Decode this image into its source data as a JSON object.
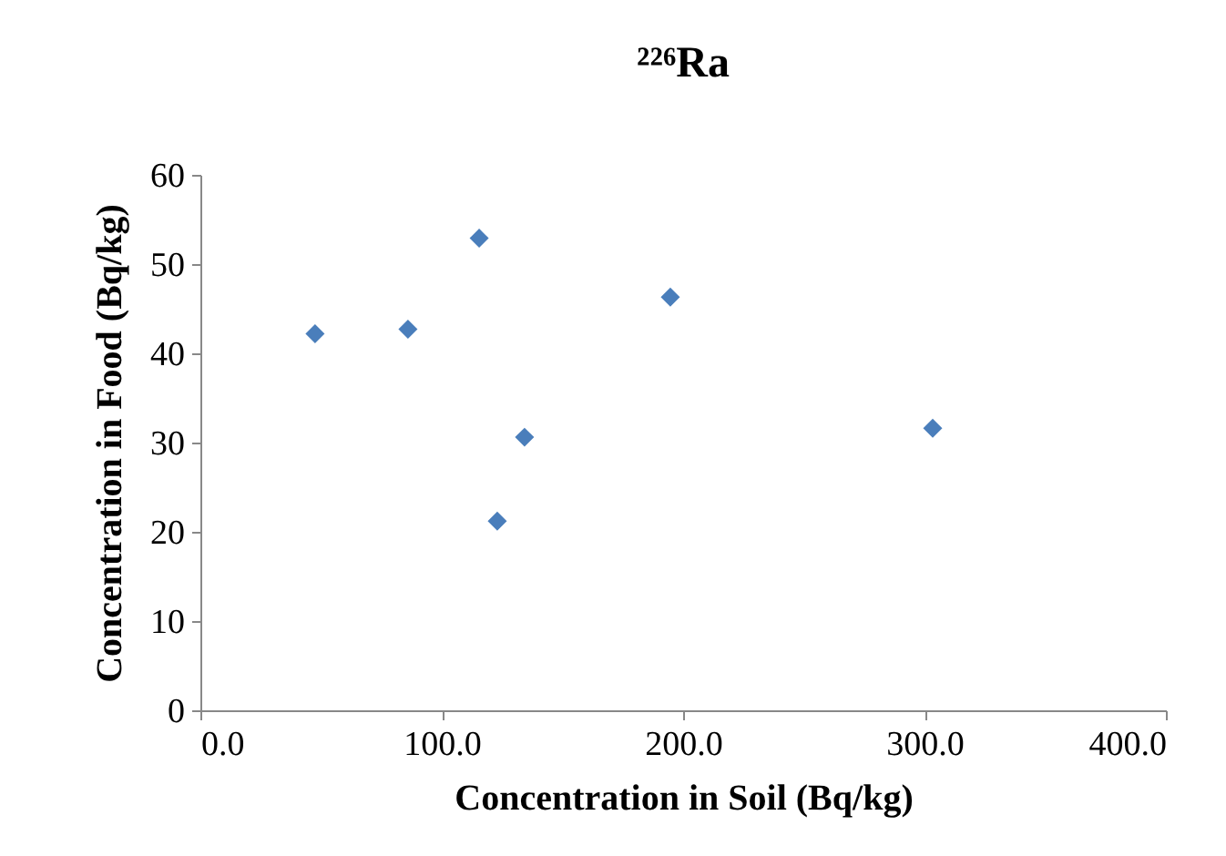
{
  "chart_data": {
    "type": "scatter",
    "title": "²²⁶Ra",
    "xlabel": "Concentration in Soil (Bq/kg)",
    "ylabel": "Concentration in Food (Bq/kg)",
    "x": [
      47.5,
      86,
      115.5,
      194.7,
      134.3,
      123,
      303.4
    ],
    "series": [
      {
        "color": "#4a7ebb",
        "values": [
          42.2,
          42.7,
          52.9,
          46.3,
          30.6,
          21.2,
          31.6
        ]
      }
    ],
    "xlim": [
      0,
      400
    ],
    "xticks": [
      {
        "value": 0,
        "label": "0.0"
      },
      {
        "value": 100,
        "label": "100.0"
      },
      {
        "value": 200,
        "label": "200.0"
      },
      {
        "value": 300,
        "label": "300.0"
      },
      {
        "value": 400,
        "label": "400.0"
      }
    ],
    "ylim": [
      0,
      60
    ],
    "yticks": [
      0,
      10,
      20,
      30,
      40,
      50,
      60
    ],
    "marker": "diamond",
    "grid": false
  }
}
